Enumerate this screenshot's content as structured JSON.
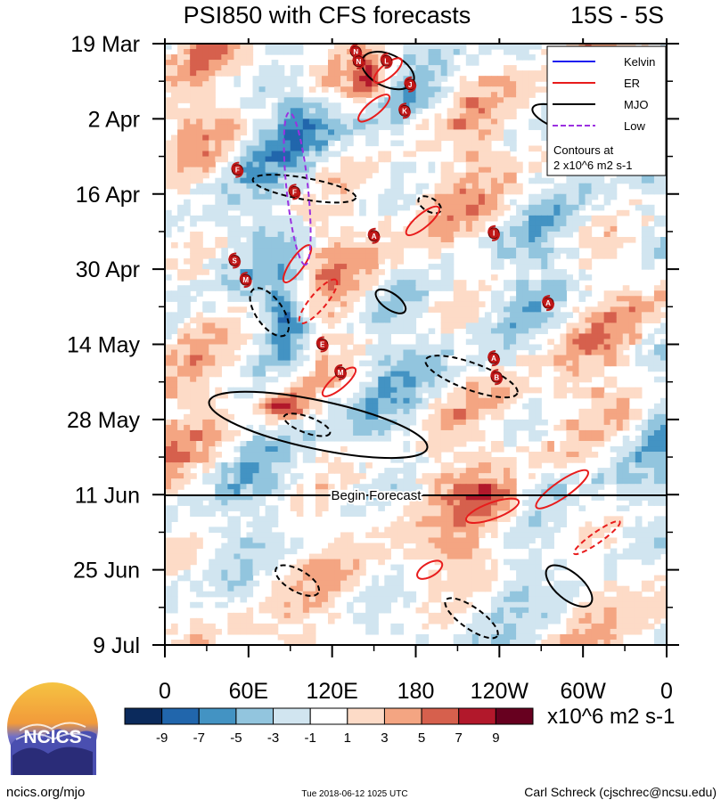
{
  "chart_data": {
    "type": "heatmap",
    "title": "PSI850 with CFS forecasts",
    "region": "15S - 5S",
    "x_ticks": [
      "0",
      "60E",
      "120E",
      "180",
      "120W",
      "60W",
      "0"
    ],
    "x_range_deg_east": [
      0,
      360
    ],
    "y_ticks": [
      "19 Mar",
      "2 Apr",
      "16 Apr",
      "30 Apr",
      "14 May",
      "28 May",
      "11 Jun",
      "25 Jun",
      "9 Jul"
    ],
    "y_range_days_from_19_Mar": [
      0,
      112
    ],
    "forecast_line": {
      "label": "Begin Forecast",
      "day": 84
    },
    "legend": {
      "entries": [
        {
          "name": "Kelvin",
          "color": "#1e1ef0",
          "style": "solid"
        },
        {
          "name": "ER",
          "color": "#e81c1c",
          "style": "solid"
        },
        {
          "name": "MJO",
          "color": "#000000",
          "style": "solid"
        },
        {
          "name": "Low",
          "color": "#9b30e0",
          "style": "dashed"
        }
      ],
      "note_line1": "Contours at",
      "note_line2": "2 x10^6 m2 s-1"
    },
    "colorbar": {
      "labels": [
        "-9",
        "-7",
        "-5",
        "-3",
        "-1",
        "1",
        "3",
        "5",
        "7",
        "9"
      ],
      "colors": [
        "#0b2a5c",
        "#2166ac",
        "#4393c3",
        "#92c5de",
        "#d1e5f0",
        "#ffffff",
        "#fddbc7",
        "#f4a582",
        "#d6604d",
        "#b2182b",
        "#67001f"
      ],
      "units": "x10^6 m2 s-1"
    },
    "storms": [
      {
        "letter": "N",
        "lon": 137,
        "day": 1.5
      },
      {
        "letter": "N",
        "lon": 139,
        "day": 3.3
      },
      {
        "letter": "L",
        "lon": 159,
        "day": 3.2
      },
      {
        "letter": "J",
        "lon": 176,
        "day": 7.6
      },
      {
        "letter": "K",
        "lon": 172,
        "day": 12.5
      },
      {
        "letter": "F",
        "lon": 52,
        "day": 23.5
      },
      {
        "letter": "F",
        "lon": 93,
        "day": 27.6
      },
      {
        "letter": "A",
        "lon": 150,
        "day": 35.8
      },
      {
        "letter": "I",
        "lon": 236,
        "day": 35.3
      },
      {
        "letter": "S",
        "lon": 50,
        "day": 40.4
      },
      {
        "letter": "M",
        "lon": 58,
        "day": 44
      },
      {
        "letter": "A",
        "lon": 275,
        "day": 48.3
      },
      {
        "letter": "E",
        "lon": 113,
        "day": 56
      },
      {
        "letter": "M",
        "lon": 126,
        "day": 61.2
      },
      {
        "letter": "A",
        "lon": 236,
        "day": 58.6
      },
      {
        "letter": "B",
        "lon": 238,
        "day": 62.1
      }
    ]
  },
  "logo": {
    "text": "NCICS"
  },
  "footer": {
    "left": "ncics.org/mjo",
    "center": "Tue 2018-06-12 1025 UTC",
    "right": "Carl Schreck (cjschrec@ncsu.edu)"
  }
}
